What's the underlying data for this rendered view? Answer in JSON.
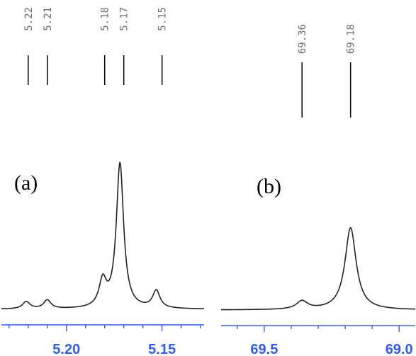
{
  "chart_data": [
    {
      "type": "line",
      "panel_label": "(a)",
      "xlim": [
        5.234,
        5.128
      ],
      "xaxis_reversed": true,
      "major_ticks": [
        5.2,
        5.15
      ],
      "major_tick_labels": [
        "5.20",
        "5.15"
      ],
      "peak_labels": [
        {
          "x": 5.22,
          "text": "5.22"
        },
        {
          "x": 5.21,
          "text": "5.21"
        },
        {
          "x": 5.18,
          "text": "5.18"
        },
        {
          "x": 5.17,
          "text": "5.17"
        },
        {
          "x": 5.15,
          "text": "5.15"
        }
      ],
      "peaks": [
        {
          "x": 5.221,
          "height": 0.05
        },
        {
          "x": 5.21,
          "height": 0.06
        },
        {
          "x": 5.181,
          "height": 0.18
        },
        {
          "x": 5.172,
          "height": 1.0
        },
        {
          "x": 5.153,
          "height": 0.12
        }
      ],
      "grid": false
    },
    {
      "type": "line",
      "panel_label": "(b)",
      "xlim": [
        69.66,
        68.94
      ],
      "xaxis_reversed": true,
      "major_ticks": [
        69.5,
        69.0
      ],
      "major_tick_labels": [
        "69.5",
        "69.0"
      ],
      "peak_labels": [
        {
          "x": 69.36,
          "text": "69.36"
        },
        {
          "x": 69.18,
          "text": "69.18"
        }
      ],
      "peaks": [
        {
          "x": 69.36,
          "height": 0.1
        },
        {
          "x": 69.18,
          "height": 1.0
        }
      ],
      "grid": false
    }
  ],
  "colors": {
    "axis": "#2f5cff",
    "trace": "#222222",
    "peak_label": "#6e6e6e"
  }
}
